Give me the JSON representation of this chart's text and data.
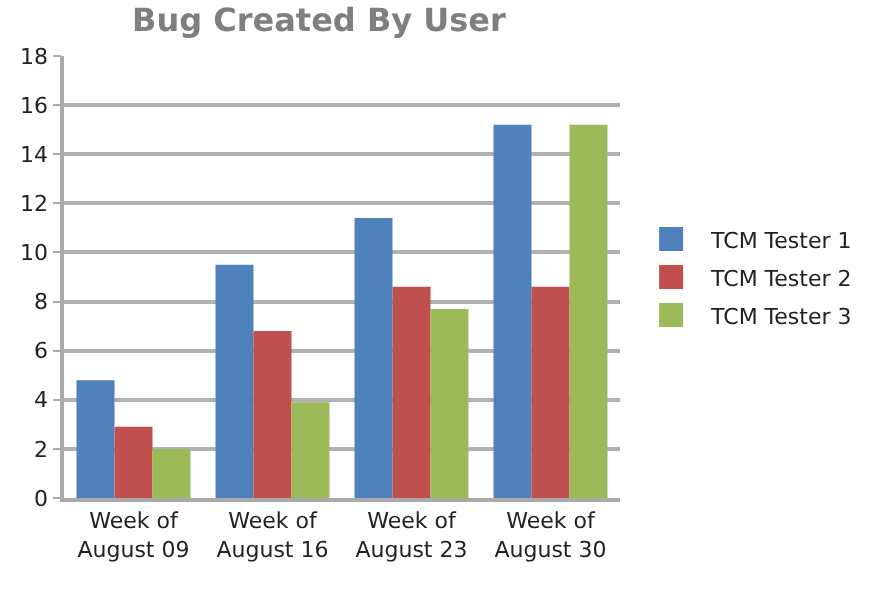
{
  "chart_data": {
    "type": "bar",
    "title": "Bug Created By User",
    "categories": [
      "Week of\nAugust 09",
      "Week of\nAugust 16",
      "Week of\nAugust 23",
      "Week of\nAugust 30"
    ],
    "series": [
      {
        "name": "TCM Tester 1",
        "color": "#4f81bd",
        "values": [
          4.8,
          9.5,
          11.4,
          15.2
        ]
      },
      {
        "name": "TCM Tester 2",
        "color": "#c0504d",
        "values": [
          2.9,
          6.8,
          8.6,
          8.6
        ]
      },
      {
        "name": "TCM Tester 3",
        "color": "#9bbb59",
        "values": [
          2.0,
          3.9,
          7.7,
          15.2
        ]
      }
    ],
    "ylim": [
      0,
      18
    ],
    "yticks": [
      0,
      2,
      4,
      6,
      8,
      10,
      12,
      14,
      16,
      18
    ],
    "grid": "y",
    "legend": "right"
  }
}
